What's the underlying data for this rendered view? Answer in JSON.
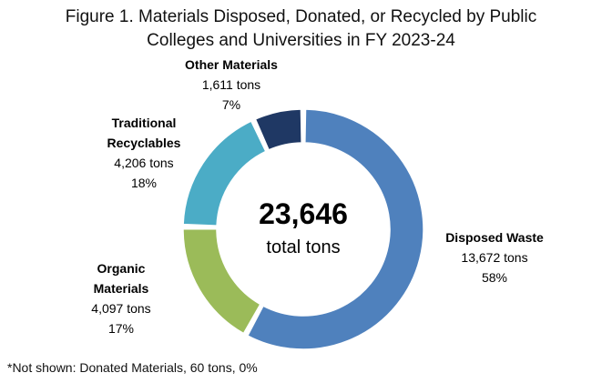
{
  "chart_data": {
    "type": "pie",
    "title_line1": "Figure 1. Materials Disposed, Donated, or Recycled by Public",
    "title_line2": "Colleges and Universities in FY 2023-24",
    "center_value": "23,646",
    "center_label": "total tons",
    "slices": [
      {
        "name_lines": [
          "Disposed Waste"
        ],
        "tons": 13672,
        "tons_text": "13,672 tons",
        "pct_text": "58%",
        "color": "#4F81BD"
      },
      {
        "name_lines": [
          "Organic",
          "Materials"
        ],
        "tons": 4097,
        "tons_text": "4,097 tons",
        "pct_text": "17%",
        "color": "#9BBB59"
      },
      {
        "name_lines": [
          "Traditional",
          "Recyclables"
        ],
        "tons": 4206,
        "tons_text": "4,206 tons",
        "pct_text": "18%",
        "color": "#4BACC6"
      },
      {
        "name_lines": [
          "Other Materials"
        ],
        "tons": 1611,
        "tons_text": "1,611 tons",
        "pct_text": "7%",
        "color": "#1F3864"
      }
    ],
    "footnote": "*Not shown: Donated Materials, 60 tons, 0%"
  }
}
